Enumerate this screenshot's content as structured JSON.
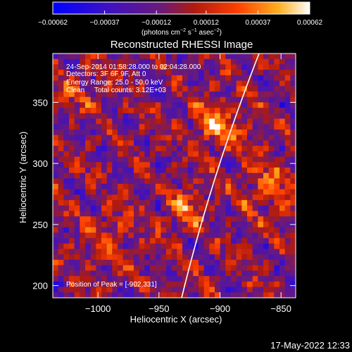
{
  "chart_data": {
    "type": "heatmap",
    "title": "Reconstructed RHESSI Image",
    "xlabel": "Heliocentric X (arcsec)",
    "ylabel": "Heliocentric Y (arcsec)",
    "xlim": [
      -1037,
      -838
    ],
    "ylim": [
      190,
      390
    ],
    "x_ticks": [
      -1000,
      -950,
      -900,
      -850
    ],
    "x_tick_labels": [
      "−1000",
      "−950",
      "−900",
      "−850"
    ],
    "y_ticks": [
      200,
      250,
      300,
      350
    ],
    "y_tick_labels": [
      "200",
      "250",
      "300",
      "350"
    ],
    "colorbar": {
      "range": [
        -0.00062,
        0.00062
      ],
      "tick_values": [
        -0.00062,
        -0.00037,
        -0.00012,
        0.00012,
        0.00037,
        0.00062
      ],
      "tick_labels": [
        "−0.00062",
        "−0.00037",
        "−0.00012",
        "0.00012",
        "0.00037",
        "0.00062"
      ],
      "unit_main": "(photons cm",
      "unit_sup1": "−2",
      "unit_mid1": " s",
      "unit_sup2": "−1",
      "unit_mid2": " asec",
      "unit_sup3": "−2",
      "unit_end": ")"
    },
    "info_lines": [
      "24-Sep-2014 01:58:28.000 to 02:04:28.000",
      "Detectors: 3F 6F 9F, Att 0",
      "Energy Range: 25.0 - 50.0 keV",
      "Clean     Total counts: 3.12E+03"
    ],
    "peak_label": "Position of Peak = [-902,331]",
    "limb_color": "#ffffff",
    "grid": false
  },
  "timestamp": "17-May-2022 12:33"
}
